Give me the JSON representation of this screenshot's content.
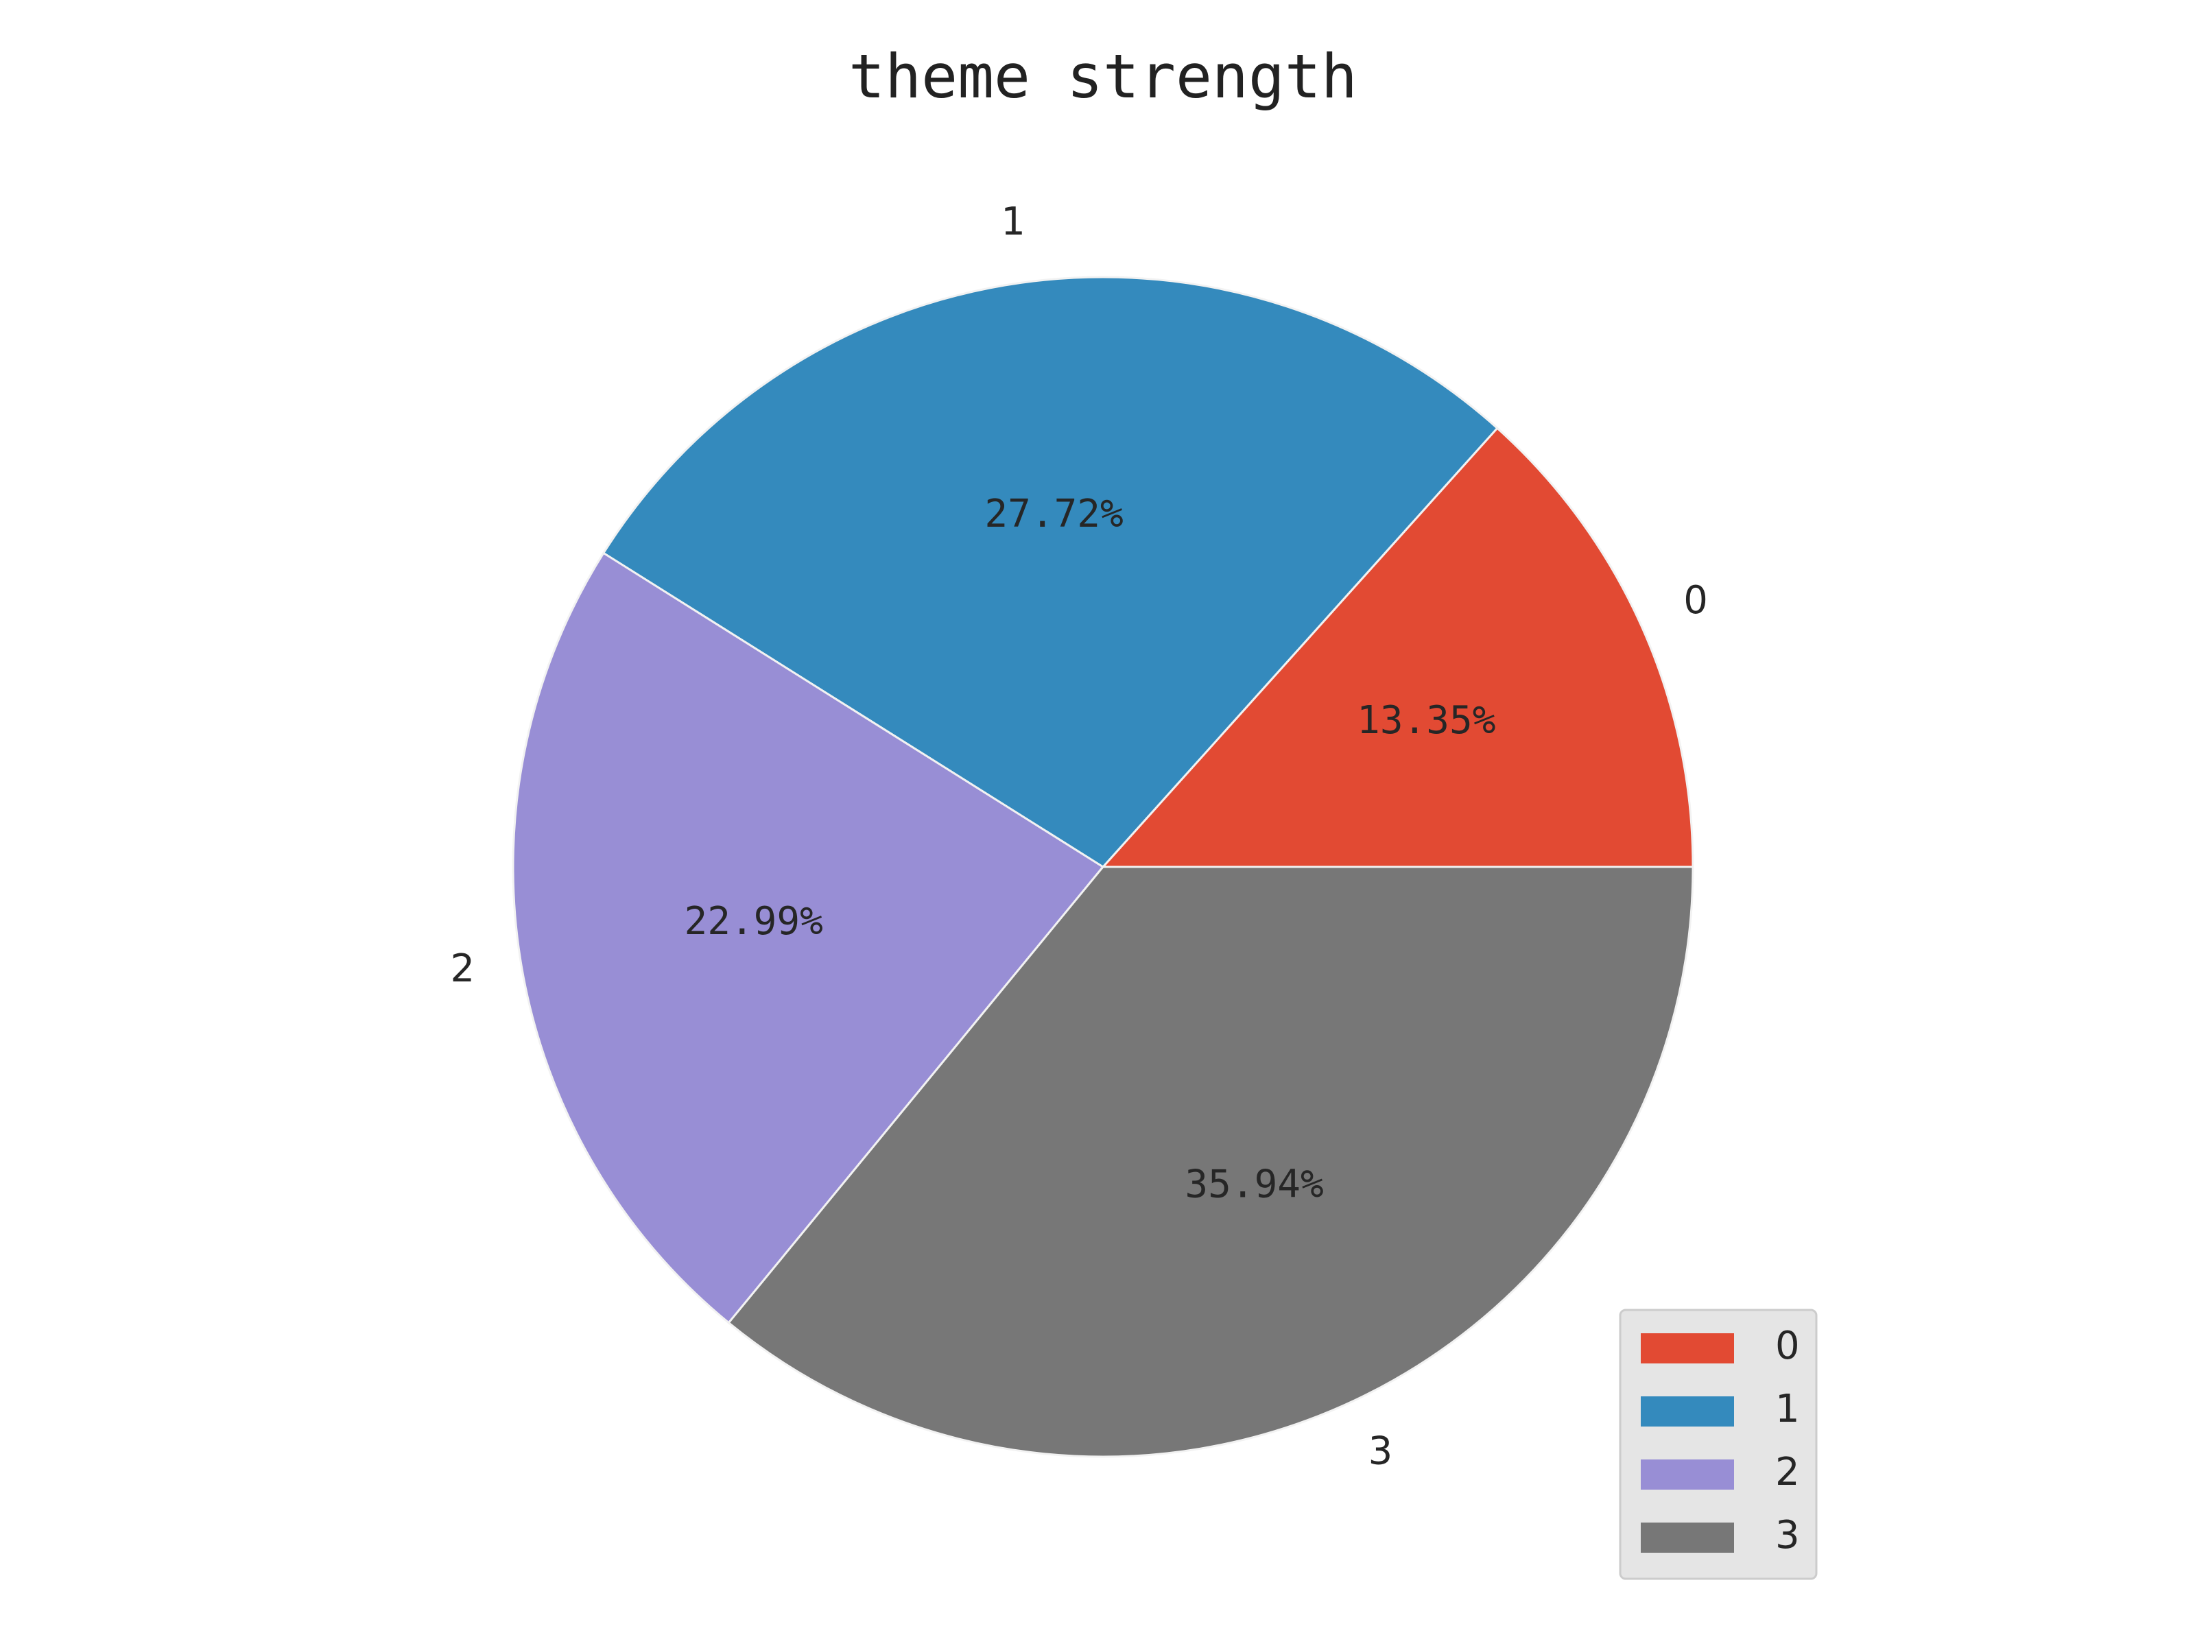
{
  "chart_data": {
    "type": "pie",
    "title": "theme strength",
    "categories": [
      "0",
      "1",
      "2",
      "3"
    ],
    "values": [
      13.35,
      27.72,
      22.99,
      35.94
    ],
    "percent_labels": [
      "13.35%",
      "27.72%",
      "22.99%",
      "35.94%"
    ],
    "colors": [
      "#E24A33",
      "#348ABD",
      "#988ED5",
      "#777777"
    ],
    "start_angle_deg": 0,
    "direction": "counterclockwise",
    "legend": {
      "placement": "lower-right",
      "entries": [
        "0",
        "1",
        "2",
        "3"
      ]
    }
  }
}
